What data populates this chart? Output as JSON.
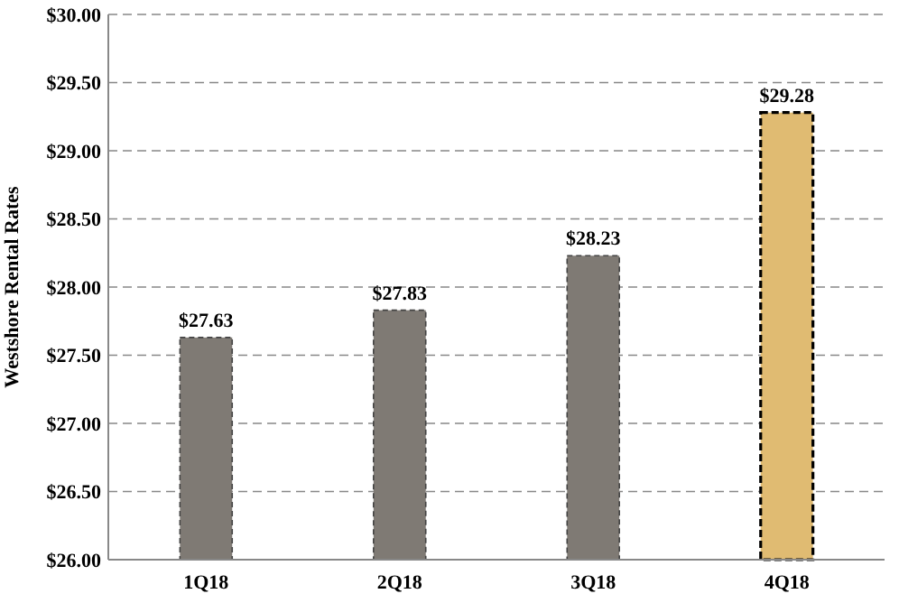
{
  "chart_data": {
    "type": "bar",
    "ylabel": "Westshore Rental Rates",
    "categories": [
      "1Q18",
      "2Q18",
      "3Q18",
      "4Q18"
    ],
    "values": [
      27.63,
      27.83,
      28.23,
      29.28
    ],
    "colors": [
      "#7f7a74",
      "#7f7a74",
      "#7f7a74",
      "#e0bb72"
    ],
    "value_labels": [
      "$27.63",
      "$27.83",
      "$28.23",
      "$29.28"
    ],
    "ylim": [
      26,
      30
    ],
    "yticks": [
      {
        "value": 26,
        "label": "$26.00"
      },
      {
        "value": 26.5,
        "label": "$26.50"
      },
      {
        "value": 27,
        "label": "$27.00"
      },
      {
        "value": 27.5,
        "label": "$27.50"
      },
      {
        "value": 28,
        "label": "$28.00"
      },
      {
        "value": 28.5,
        "label": "$28.50"
      },
      {
        "value": 29,
        "label": "$29.00"
      },
      {
        "value": 29.5,
        "label": "$29.50"
      },
      {
        "value": 30,
        "label": "$30.00"
      }
    ],
    "grid": "y"
  }
}
